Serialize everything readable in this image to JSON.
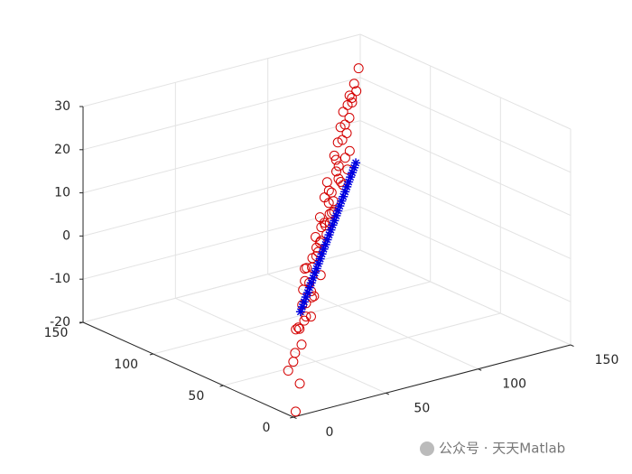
{
  "chart_data": {
    "type": "scatter3d",
    "xlim": [
      0,
      150
    ],
    "ylim": [
      0,
      150
    ],
    "zlim": [
      -20,
      30
    ],
    "xticks": [
      0,
      50,
      100,
      150
    ],
    "yticks": [
      0,
      50,
      100,
      150
    ],
    "zticks": [
      -20,
      -10,
      0,
      10,
      20,
      30
    ],
    "grid": true,
    "series": [
      {
        "marker": "o",
        "color": "#d40000",
        "x": [
          5,
          8,
          4,
          10,
          12,
          6,
          14,
          18,
          15,
          20,
          22,
          25,
          26,
          28,
          30,
          32,
          35,
          36,
          40,
          38,
          42,
          45,
          46,
          48,
          50,
          52,
          55,
          56,
          58,
          60,
          62,
          65,
          66,
          68,
          70,
          72,
          75,
          76,
          78,
          80,
          82,
          85,
          86,
          88,
          90,
          92,
          95,
          96,
          98,
          100,
          102,
          105,
          106,
          108,
          110,
          112,
          115,
          116,
          118,
          120,
          122,
          125,
          126,
          128,
          130,
          132,
          135,
          138,
          140,
          126
        ],
        "y": [
          5,
          6,
          9,
          12,
          10,
          8,
          15,
          16,
          18,
          22,
          20,
          24,
          28,
          30,
          27,
          34,
          33,
          38,
          38,
          42,
          44,
          43,
          48,
          50,
          47,
          55,
          53,
          58,
          60,
          57,
          64,
          62,
          68,
          70,
          67,
          75,
          73,
          78,
          80,
          78,
          84,
          83,
          88,
          90,
          88,
          94,
          93,
          98,
          100,
          98,
          104,
          103,
          108,
          110,
          108,
          114,
          113,
          118,
          120,
          118,
          124,
          123,
          128,
          130,
          128,
          134,
          133,
          140,
          138,
          126
        ],
        "z": [
          -20,
          -14,
          -11,
          -8,
          -6,
          -9,
          -3,
          -2,
          -4,
          -5,
          1,
          -3,
          -1,
          2,
          -4,
          3,
          -1,
          5,
          -2,
          4,
          0,
          6,
          -3,
          2,
          8,
          3,
          -1,
          7,
          4,
          10,
          2,
          6,
          9,
          3,
          12,
          5,
          8,
          11,
          4,
          7,
          13,
          6,
          10,
          2,
          14,
          8,
          11,
          5,
          15,
          9,
          13,
          7,
          16,
          10,
          12,
          18,
          8,
          14,
          20,
          11,
          16,
          22,
          13,
          19,
          24,
          15,
          21,
          17,
          25,
          22
        ]
      },
      {
        "marker": "*",
        "color": "#0000e0",
        "x": [
          16,
          20,
          24,
          28,
          32,
          36,
          40,
          44,
          48,
          52,
          56,
          60,
          64,
          68,
          72,
          76,
          80,
          84,
          88,
          92,
          96,
          100,
          104,
          108,
          112,
          116,
          120,
          124,
          128,
          132,
          136,
          140
        ],
        "y": [
          16,
          20,
          24,
          28,
          32,
          36,
          40,
          44,
          48,
          52,
          56,
          60,
          64,
          68,
          72,
          76,
          80,
          84,
          88,
          92,
          96,
          100,
          104,
          108,
          112,
          116,
          120,
          124,
          128,
          132,
          136,
          140
        ],
        "z": [
          0.3,
          0.4,
          0.5,
          0.6,
          0.6,
          0.7,
          0.8,
          0.9,
          1.0,
          1.0,
          1.1,
          1.2,
          1.3,
          1.4,
          1.4,
          1.5,
          1.6,
          1.7,
          1.8,
          1.8,
          1.9,
          2.0,
          2.1,
          2.2,
          2.2,
          2.3,
          2.4,
          2.5,
          2.6,
          2.6,
          2.7,
          2.8
        ]
      }
    ]
  },
  "watermark": "公众号 · 天天Matlab"
}
